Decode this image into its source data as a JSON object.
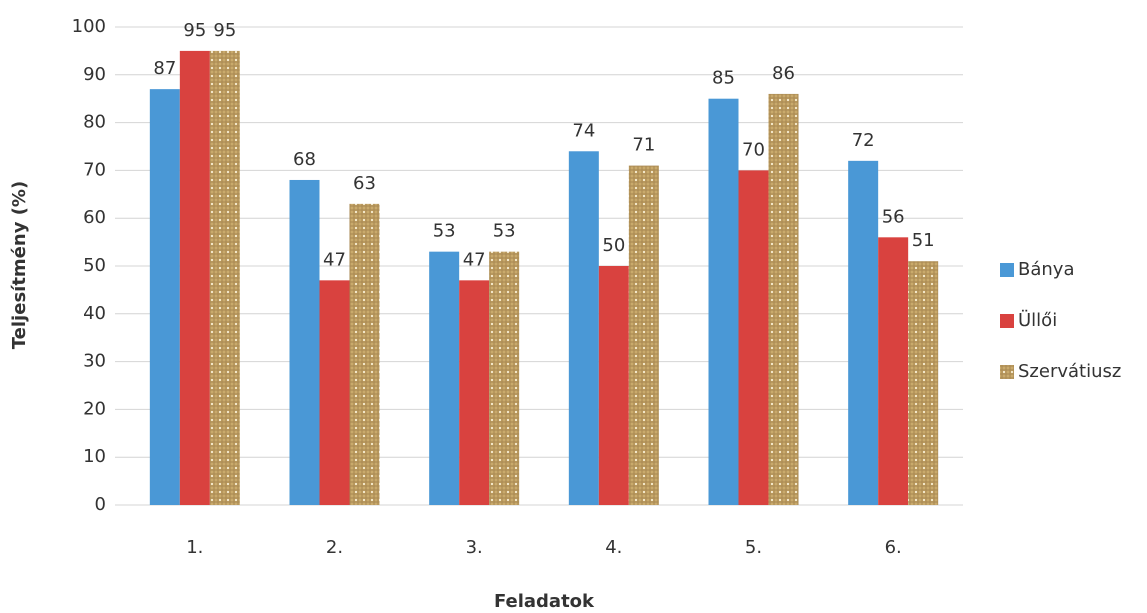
{
  "chart_data": {
    "type": "bar",
    "x_label": "Feladatok",
    "y_label": "Teljesítmény (%)",
    "categories": [
      "1.",
      "2.",
      "3.",
      "4.",
      "5.",
      "6."
    ],
    "series": [
      {
        "name": "Bánya",
        "color": "#4a98d6",
        "values": [
          87,
          68,
          53,
          74,
          85,
          72
        ]
      },
      {
        "name": "Üllői",
        "color": "#d9423f",
        "values": [
          95,
          47,
          47,
          50,
          70,
          56
        ]
      },
      {
        "name": "Szervátiusz",
        "color": "#c9aa6c",
        "values": [
          95,
          63,
          53,
          71,
          86,
          51
        ]
      }
    ],
    "ylim": [
      0,
      100
    ],
    "yticks": [
      0,
      10,
      20,
      30,
      40,
      50,
      60,
      70,
      80,
      90,
      100
    ],
    "grid": true,
    "legend": "right"
  }
}
